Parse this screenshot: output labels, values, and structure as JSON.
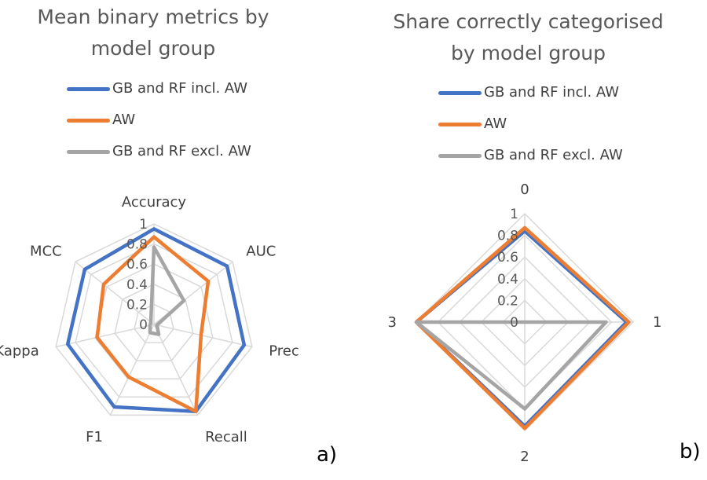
{
  "panel_a": {
    "title_line1": "Mean binary metrics by",
    "title_line2": "model group",
    "letter": "a)"
  },
  "panel_b": {
    "title_line1": "Share correctly categorised",
    "title_line2": "by model group",
    "letter": "b)"
  },
  "legend": [
    {
      "name": "GB and RF incl. AW",
      "color": "#4472C4"
    },
    {
      "name": "AW",
      "color": "#ED7D31"
    },
    {
      "name": "GB and RF excl. AW",
      "color": "#A5A5A5"
    }
  ],
  "chart_data": [
    {
      "type": "radar",
      "title": "Mean binary metrics by model group",
      "categories": [
        "Accuracy",
        "AUC",
        "Prec",
        "Recall",
        "F1",
        "Kappa",
        "MCC"
      ],
      "radial_ticks": [
        "0",
        "0.2",
        "0.4",
        "0.6",
        "0.8",
        "1"
      ],
      "range": [
        0,
        1
      ],
      "grid": true,
      "legend_position": "top",
      "series": [
        {
          "name": "GB and RF incl. AW",
          "color": "#4472C4",
          "values": [
            0.95,
            0.93,
            0.92,
            0.96,
            0.91,
            0.88,
            0.88
          ]
        },
        {
          "name": "AW",
          "color": "#ED7D31",
          "values": [
            0.87,
            0.69,
            0.48,
            0.96,
            0.58,
            0.58,
            0.64
          ]
        },
        {
          "name": "GB and RF excl. AW",
          "color": "#A5A5A5",
          "values": [
            0.77,
            0.38,
            0.03,
            0.11,
            0.09,
            0.04,
            0.04
          ]
        }
      ]
    },
    {
      "type": "radar",
      "title": "Share correctly categorised by model group",
      "categories": [
        "0",
        "1",
        "2",
        "3"
      ],
      "radial_ticks": [
        "0",
        "0.2",
        "0.4",
        "0.6",
        "0.8",
        "1"
      ],
      "range": [
        0,
        1
      ],
      "grid": true,
      "legend_position": "top",
      "series": [
        {
          "name": "GB and RF incl. AW",
          "color": "#4472C4",
          "values": [
            0.84,
            0.94,
            0.96,
            1.0
          ]
        },
        {
          "name": "AW",
          "color": "#ED7D31",
          "values": [
            0.87,
            0.96,
            0.98,
            1.0
          ]
        },
        {
          "name": "GB and RF excl. AW",
          "color": "#A5A5A5",
          "values": [
            0.0,
            0.75,
            0.8,
            1.0
          ]
        }
      ]
    }
  ]
}
